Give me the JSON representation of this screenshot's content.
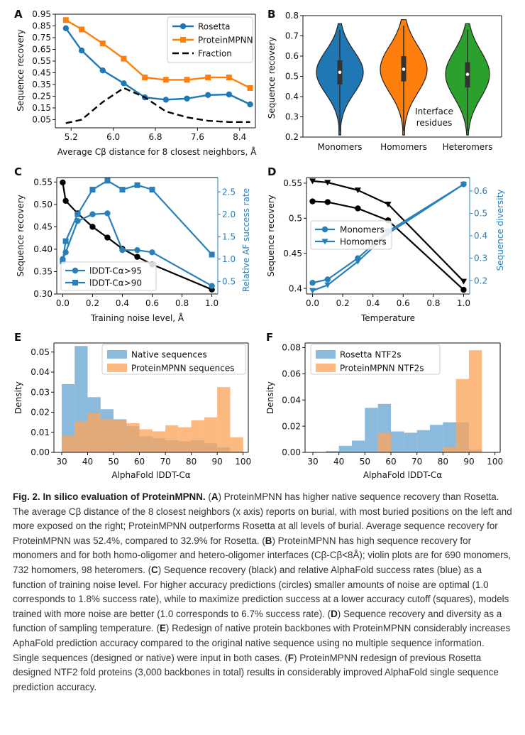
{
  "chart_data": [
    {
      "panel": "A",
      "type": "line",
      "xlabel": "Average Cβ distance for 8 closest neighbors, Å",
      "ylabel": "Sequence recovery",
      "xlim": [
        4.9,
        8.7
      ],
      "ylim": [
        -0.02,
        0.95
      ],
      "xticks": [
        "5.2",
        "6.0",
        "6.8",
        "7.6",
        "8.4"
      ],
      "yticks": [
        "0.05",
        "0.15",
        "0.25",
        "0.35",
        "0.45",
        "0.55",
        "0.65",
        "0.75",
        "0.85",
        "0.95"
      ],
      "legend": "top-right",
      "series": [
        {
          "name": "Rosetta",
          "color": "#1f77b4",
          "marker": "circle",
          "x": [
            5.1,
            5.4,
            5.8,
            6.2,
            6.6,
            7.0,
            7.4,
            7.8,
            8.2,
            8.6
          ],
          "y": [
            0.83,
            0.64,
            0.47,
            0.36,
            0.24,
            0.22,
            0.23,
            0.26,
            0.265,
            0.18
          ]
        },
        {
          "name": "ProteinMPNN",
          "color": "#ff7f0e",
          "marker": "square",
          "x": [
            5.1,
            5.4,
            5.8,
            6.2,
            6.6,
            7.0,
            7.4,
            7.8,
            8.2,
            8.6
          ],
          "y": [
            0.9,
            0.82,
            0.7,
            0.57,
            0.41,
            0.39,
            0.39,
            0.41,
            0.41,
            0.32
          ]
        },
        {
          "name": "Fraction",
          "color": "#000000",
          "dashed": true,
          "x": [
            5.1,
            5.4,
            5.8,
            6.2,
            6.6,
            7.0,
            7.4,
            7.8,
            8.2,
            8.6
          ],
          "y": [
            0.02,
            0.05,
            0.2,
            0.32,
            0.24,
            0.12,
            0.07,
            0.04,
            0.03,
            0.03
          ]
        }
      ]
    },
    {
      "panel": "B",
      "type": "violin",
      "ylabel": "Sequence recovery",
      "ylim": [
        0.2,
        0.8
      ],
      "yticks": [
        "0.2",
        "0.3",
        "0.4",
        "0.5",
        "0.6",
        "0.7",
        "0.8"
      ],
      "categories": [
        "Monomers",
        "Homomers",
        "Heteromers"
      ],
      "colors": [
        "#1f77b4",
        "#ff7f0e",
        "#2ca02c"
      ],
      "medians": [
        0.52,
        0.535,
        0.51
      ],
      "q1": [
        0.46,
        0.475,
        0.445
      ],
      "q3": [
        0.58,
        0.6,
        0.57
      ],
      "annotation": "Interface\nresidues"
    },
    {
      "panel": "C",
      "type": "line",
      "xlabel": "Training noise level, Å",
      "ylabel": "Sequence recovery",
      "y2label": "Relative AF success rate",
      "xlim": [
        -0.04,
        1.04
      ],
      "ylim": [
        0.3,
        0.56
      ],
      "y2lim": [
        0.22,
        2.82
      ],
      "xticks": [
        "0.0",
        "0.2",
        "0.4",
        "0.6",
        "0.8",
        "1.0"
      ],
      "yticks": [
        "0.30",
        "0.35",
        "0.40",
        "0.45",
        "0.50",
        "0.55"
      ],
      "y2ticks": [
        "0.5",
        "1.0",
        "1.5",
        "2.0",
        "2.5"
      ],
      "legend": "bottom-left",
      "series": [
        {
          "name": "",
          "axis": "y",
          "color": "#000000",
          "marker": "circle",
          "x": [
            0,
            0.02,
            0.1,
            0.2,
            0.3,
            0.4,
            0.5,
            0.6,
            1.0
          ],
          "y": [
            0.549,
            0.508,
            0.48,
            0.45,
            0.426,
            0.401,
            0.383,
            0.366,
            0.31
          ]
        },
        {
          "name": "lDDT-Cα>95",
          "axis": "y2",
          "color": "#2980b9",
          "marker": "circle",
          "x": [
            0,
            0.02,
            0.1,
            0.2,
            0.3,
            0.4,
            0.5,
            0.6,
            1.0
          ],
          "y": [
            1.0,
            1.15,
            1.85,
            2.0,
            2.02,
            1.2,
            1.2,
            1.15,
            0.4
          ]
        },
        {
          "name": "lDDT-Cα>90",
          "axis": "y2",
          "color": "#2980b9",
          "marker": "square",
          "x": [
            0,
            0.02,
            0.1,
            0.2,
            0.3,
            0.4,
            0.5,
            0.6,
            1.0
          ],
          "y": [
            0.95,
            1.4,
            2.0,
            2.55,
            2.75,
            2.55,
            2.65,
            2.55,
            1.1
          ]
        }
      ]
    },
    {
      "panel": "D",
      "type": "line",
      "xlabel": "Temperature",
      "ylabel": "Sequence recovery",
      "y2label": "Sequence diversity",
      "xlim": [
        -0.04,
        1.04
      ],
      "ylim": [
        0.392,
        0.558
      ],
      "y2lim": [
        0.14,
        0.66
      ],
      "xticks": [
        "0.0",
        "0.2",
        "0.4",
        "0.6",
        "0.8",
        "1.0"
      ],
      "yticks": [
        "0.4",
        "0.45",
        "0.5",
        "0.55"
      ],
      "y2ticks": [
        "0.2",
        "0.3",
        "0.4",
        "0.5",
        "0.6"
      ],
      "legend": "center-left",
      "series": [
        {
          "name": "Monomers",
          "axis": "y",
          "color": "#000000",
          "marker": "circle",
          "x": [
            0,
            0.1,
            0.3,
            0.5,
            1.0
          ],
          "y": [
            0.524,
            0.523,
            0.514,
            0.497,
            0.398
          ]
        },
        {
          "name": "Homomers",
          "axis": "y",
          "color": "#000000",
          "marker": "triangle-down",
          "x": [
            0,
            0.1,
            0.3,
            0.5,
            1.0
          ],
          "y": [
            0.553,
            0.551,
            0.54,
            0.52,
            0.41
          ]
        },
        {
          "name": "",
          "axis": "y2",
          "color": "#2980b9",
          "marker": "circle",
          "x": [
            0,
            0.1,
            0.3,
            0.5,
            1.0
          ],
          "y": [
            0.19,
            0.205,
            0.3,
            0.42,
            0.63
          ]
        },
        {
          "name": "",
          "axis": "y2",
          "color": "#2980b9",
          "marker": "triangle-down",
          "x": [
            0,
            0.1,
            0.3,
            0.5,
            1.0
          ],
          "y": [
            0.155,
            0.18,
            0.285,
            0.41,
            0.63
          ]
        }
      ]
    },
    {
      "panel": "E",
      "type": "histogram",
      "xlabel": "AlphaFold lDDT-Cα",
      "ylabel": "Density",
      "xlim": [
        27,
        102
      ],
      "ylim": [
        0,
        0.0545
      ],
      "xticks": [
        "30",
        "40",
        "50",
        "60",
        "70",
        "80",
        "90",
        "100"
      ],
      "yticks": [
        "0.00",
        "0.01",
        "0.02",
        "0.03",
        "0.04",
        "0.05"
      ],
      "legend": "top-right",
      "bin_edges": [
        30,
        35,
        40,
        45,
        50,
        55,
        60,
        65,
        70,
        75,
        80,
        85,
        90,
        95,
        100
      ],
      "series": [
        {
          "name": "Native sequences",
          "color": "#6aa6d3",
          "values": [
            0.034,
            0.053,
            0.0275,
            0.0215,
            0.0165,
            0.013,
            0.008,
            0.007,
            0.006,
            0.0055,
            0.006,
            0.0045,
            0.0025,
            0.0005
          ]
        },
        {
          "name": "ProteinMPNN sequences",
          "color": "#fba55c",
          "values": [
            0.0085,
            0.0155,
            0.0195,
            0.0165,
            0.016,
            0.0145,
            0.0115,
            0.0105,
            0.0135,
            0.0125,
            0.016,
            0.0175,
            0.0325,
            0.0075
          ]
        }
      ]
    },
    {
      "panel": "F",
      "type": "histogram",
      "xlabel": "AlphaFold lDDT-Cα",
      "ylabel": "Density",
      "xlim": [
        27,
        102
      ],
      "ylim": [
        0,
        0.0835
      ],
      "xticks": [
        "30",
        "40",
        "50",
        "60",
        "70",
        "80",
        "90",
        "100"
      ],
      "yticks": [
        "0.00",
        "0.02",
        "0.04",
        "0.06",
        "0.08"
      ],
      "legend": "top-left",
      "bin_edges": [
        35,
        40,
        45,
        50,
        55,
        60,
        65,
        70,
        75,
        80,
        85,
        90,
        95
      ],
      "series": [
        {
          "name": "Rosetta NTF2s",
          "color": "#6aa6d3",
          "values": [
            0.001,
            0.005,
            0.009,
            0.034,
            0.037,
            0.016,
            0.015,
            0.017,
            0.021,
            0.023,
            0.023,
            0.002
          ]
        },
        {
          "name": "ProteinMPNN NTF2s",
          "color": "#fba55c",
          "values": [
            0,
            0,
            0,
            0,
            0.015,
            0,
            0,
            0,
            0,
            0.004,
            0.056,
            0.078
          ]
        }
      ]
    }
  ],
  "caption": {
    "label": "Fig. 2.",
    "title": "In silico evaluation of ProteinMPNN.",
    "parts": [
      {
        "b": "A",
        "text": "ProteinMPNN has higher native sequence recovery than Rosetta. The average Cβ distance of the 8 closest neighbors (x axis) reports on burial, with most buried positions on the left and more exposed on the right; ProteinMPNN outperforms Rosetta at all levels of burial. Average sequence recovery for ProteinMPNN was 52.4%, compared to 32.9% for Rosetta."
      },
      {
        "b": "B",
        "text": "ProteinMPNN has high sequence recovery for monomers and for both homo-oligomer and hetero-oligomer interfaces (Cβ-Cβ<8Å); violin plots are for 690 monomers, 732 homomers, 98 heteromers."
      },
      {
        "b": "C",
        "text": "Sequence recovery (black) and relative AlphaFold success rates (blue) as a function of training noise level. For higher accuracy predictions (circles) smaller amounts of noise are optimal (1.0 corresponds to 1.8% success rate), while to maximize prediction success at a lower accuracy cutoff (squares), models trained with more noise are better (1.0 corresponds to 6.7% success rate)."
      },
      {
        "b": "D",
        "text": "Sequence recovery and diversity as a function of sampling temperature."
      },
      {
        "b": "E",
        "text": "Redesign of native protein backbones with ProteinMPNN considerably increases AphaFold prediction accuracy compared to the original native sequence using no multiple sequence information. Single sequences (designed or native) were input in both cases."
      },
      {
        "b": "F",
        "text": "ProteinMPNN redesign of previous Rosetta designed NTF2 fold proteins (3,000 backbones in total) results in considerably improved AlphaFold single sequence prediction accuracy."
      }
    ]
  }
}
